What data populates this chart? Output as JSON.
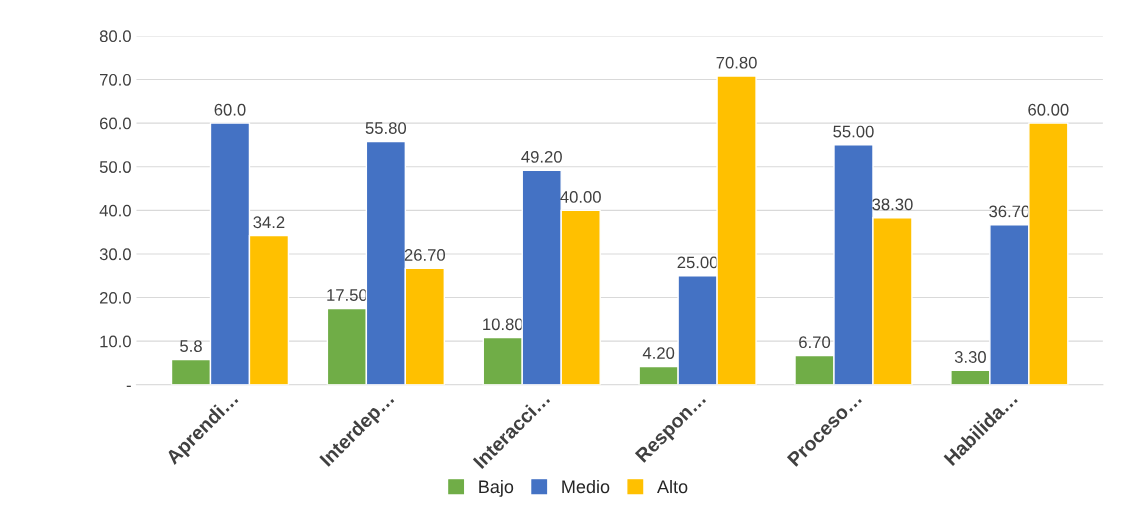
{
  "chart_data": {
    "type": "bar",
    "categories": [
      "Aprendi…",
      "Interdep…",
      "Interacci…",
      "Respon…",
      "Proceso…",
      "Habilida…"
    ],
    "series": [
      {
        "name": "Bajo",
        "color": "#70ad47",
        "values": [
          5.8,
          17.5,
          10.8,
          4.2,
          6.7,
          3.3
        ],
        "value_labels": [
          "5.8",
          "17.50",
          "10.80",
          "4.20",
          "6.70",
          "3.30"
        ]
      },
      {
        "name": "Medio",
        "color": "#4472c4",
        "values": [
          60.0,
          55.8,
          49.2,
          25.0,
          55.0,
          36.7
        ],
        "value_labels": [
          "60.0",
          "55.80",
          "49.20",
          "25.00",
          "55.00",
          "36.70"
        ]
      },
      {
        "name": "Alto",
        "color": "#ffc000",
        "values": [
          34.2,
          26.7,
          40.0,
          70.8,
          38.3,
          60.0
        ],
        "value_labels": [
          "34.2",
          "26.70",
          "40.00",
          "70.80",
          "38.30",
          "60.00"
        ]
      }
    ],
    "ylim": [
      0,
      80
    ],
    "yticks": [
      {
        "value": 0,
        "label": "-"
      },
      {
        "value": 10,
        "label": "10.0"
      },
      {
        "value": 20,
        "label": "20.0"
      },
      {
        "value": 30,
        "label": "30.0"
      },
      {
        "value": 40,
        "label": "40.0"
      },
      {
        "value": 50,
        "label": "50.0"
      },
      {
        "value": 60,
        "label": "60.0"
      },
      {
        "value": 70,
        "label": "70.0"
      },
      {
        "value": 80,
        "label": "80.0"
      }
    ],
    "grid": "y",
    "legend": "bottom"
  }
}
